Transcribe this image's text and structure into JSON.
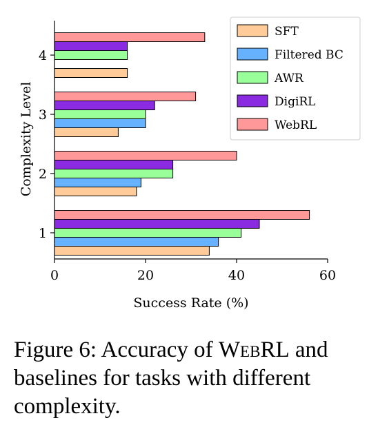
{
  "chart_data": {
    "type": "bar",
    "orientation": "horizontal",
    "xlabel": "Success Rate (%)",
    "ylabel": "Complexity Level",
    "xlim": [
      0,
      60
    ],
    "xticks": [
      "0",
      "20",
      "40",
      "60"
    ],
    "categories": [
      "1",
      "2",
      "3",
      "4"
    ],
    "legend_position": "top-right",
    "grid": false,
    "series": [
      {
        "name": "SFT",
        "color": "#ffcc99",
        "values": [
          34,
          18,
          14,
          16
        ]
      },
      {
        "name": "Filtered BC",
        "color": "#66b2ff",
        "values": [
          36,
          19,
          20,
          0
        ]
      },
      {
        "name": "AWR",
        "color": "#99ff99",
        "values": [
          41,
          26,
          20,
          16
        ]
      },
      {
        "name": "DigiRL",
        "color": "#8a2be2",
        "values": [
          45,
          26,
          22,
          16
        ]
      },
      {
        "name": "WebRL",
        "color": "#ff9999",
        "values": [
          56,
          40,
          31,
          33
        ]
      }
    ]
  },
  "caption": {
    "prefix": "Figure 6:  Accuracy of ",
    "name": "WebRL",
    "suffix": " and baselines for tasks with different complexity."
  }
}
